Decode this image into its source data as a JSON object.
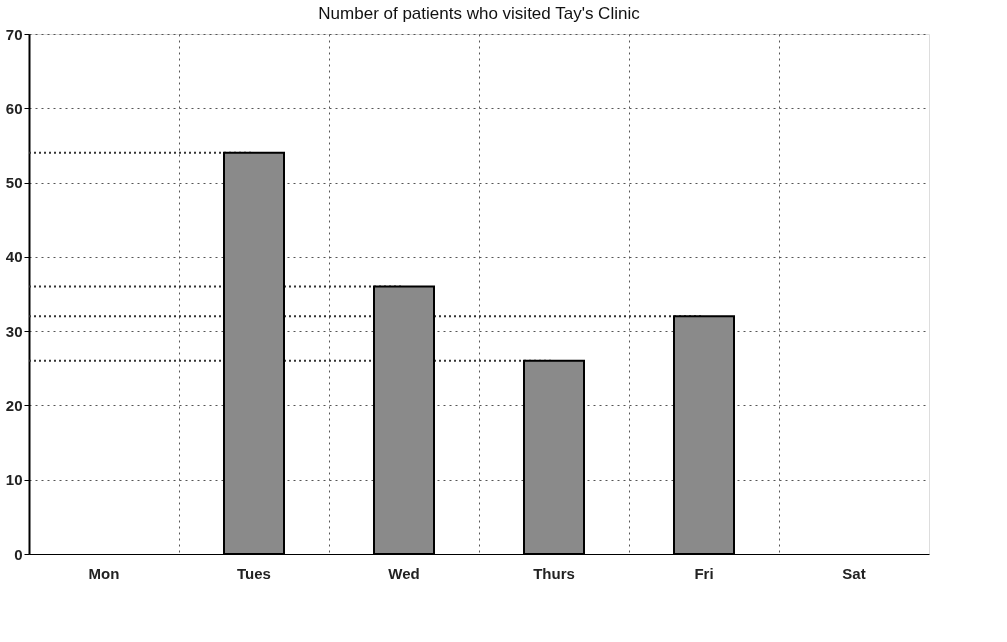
{
  "chart_data": {
    "type": "bar",
    "title": "Number of patients who visited Tay's Clinic",
    "categories": [
      "Mon",
      "Tues",
      "Wed",
      "Thurs",
      "Fri",
      "Sat"
    ],
    "values": [
      null,
      54,
      36,
      26,
      32,
      null
    ],
    "color": "#8a8a8a",
    "ylim": [
      0,
      70
    ],
    "yticks": [
      0,
      10,
      20,
      30,
      40,
      50,
      60,
      70
    ],
    "grid": true,
    "ref_lines": [
      {
        "axis": "y",
        "value": 54,
        "line_style": "dotted",
        "color": "#333333"
      },
      {
        "axis": "y",
        "value": 36,
        "line_style": "dotted",
        "color": "#333333"
      },
      {
        "axis": "y",
        "value": 32,
        "line_style": "dotted",
        "color": "#333333"
      },
      {
        "axis": "y",
        "value": 26,
        "line_style": "dotted",
        "color": "#333333"
      }
    ]
  }
}
